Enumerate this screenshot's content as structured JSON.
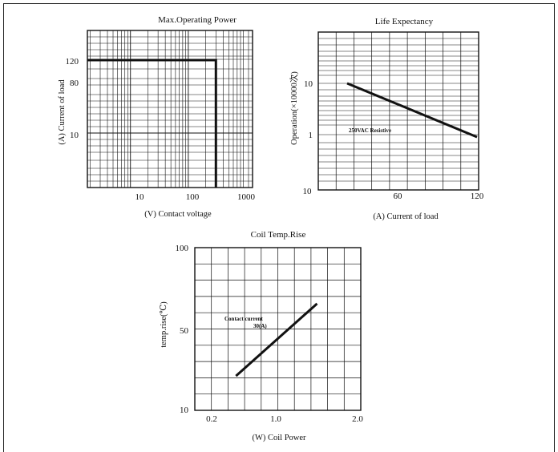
{
  "chart_data": [
    {
      "id": "max-operating-power",
      "type": "line",
      "title": "Max.Operating Power",
      "xlabel": "(V) Contact voltage",
      "ylabel": "(A) Current of load",
      "x_scale": "log",
      "x_tick_labels": [
        "10",
        "100",
        "1000"
      ],
      "y_tick_labels": [
        "120",
        "80",
        "10"
      ],
      "grid": true,
      "series": [
        {
          "points": [
            {
              "x": 1.8,
              "y": 120
            },
            {
              "x": 300,
              "y": 120
            },
            {
              "x": 300,
              "y": 0
            }
          ]
        }
      ]
    },
    {
      "id": "life-expectancy",
      "type": "line",
      "title": "Life Expectancy",
      "xlabel": "(A) Current of load",
      "ylabel": "Operation(×10000次)",
      "y_scale": "log",
      "x_tick_labels": [
        "10",
        "60",
        "120"
      ],
      "y_tick_labels": [
        "10",
        "1"
      ],
      "grid": true,
      "annotations": [
        "250VAC Resistive"
      ],
      "series": [
        {
          "points": [
            {
              "x": 30,
              "y": 10
            },
            {
              "x": 120,
              "y": 1
            }
          ]
        }
      ]
    },
    {
      "id": "coil-temp-rise",
      "type": "line",
      "title": "Coil Temp.Rise",
      "xlabel": "(W) Coil Power",
      "ylabel": "temp.rise(℃)",
      "x_tick_labels": [
        "0.2",
        "1.0",
        "2.0"
      ],
      "y_tick_labels": [
        "100",
        "50",
        "10"
      ],
      "grid": true,
      "annotations": [
        "Contact current",
        "30(A)"
      ],
      "series": [
        {
          "points": [
            {
              "x": 0.5,
              "y": 29
            },
            {
              "x": 1.5,
              "y": 69
            }
          ]
        }
      ]
    }
  ]
}
